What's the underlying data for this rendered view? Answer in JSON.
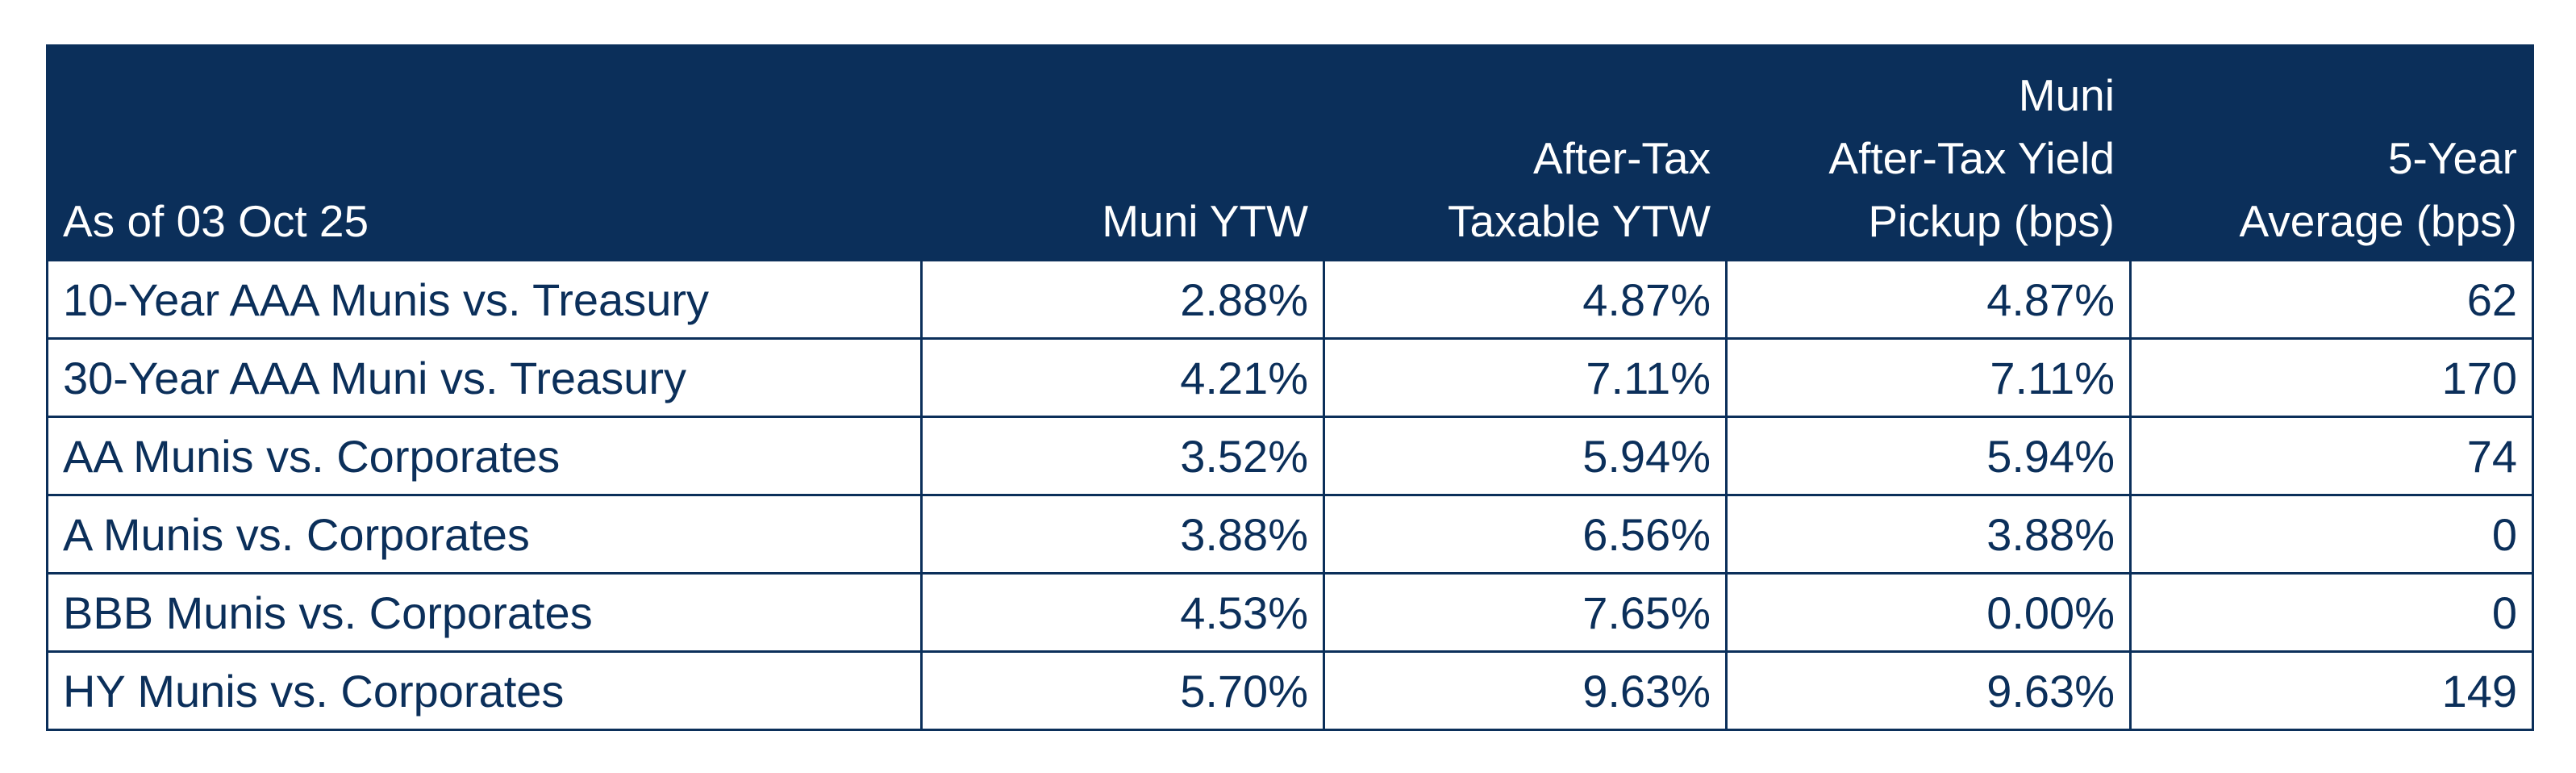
{
  "table": {
    "header": [
      "As of 03 Oct 25",
      "Muni YTW",
      "After-Tax\nTaxable YTW",
      "Muni\nAfter-Tax Yield\nPickup (bps)",
      "5-Year\nAverage (bps)"
    ],
    "rows": [
      [
        "10-Year AAA Munis vs. Treasury",
        "2.88%",
        "4.87%",
        "4.87%",
        "62"
      ],
      [
        "30-Year AAA Muni vs. Treasury",
        "4.21%",
        "7.11%",
        "7.11%",
        "170"
      ],
      [
        "AA Munis vs. Corporates",
        "3.52%",
        "5.94%",
        "5.94%",
        "74"
      ],
      [
        "A Munis vs. Corporates",
        "3.88%",
        "6.56%",
        "3.88%",
        "0"
      ],
      [
        "BBB Munis vs. Corporates",
        "4.53%",
        "7.65%",
        "0.00%",
        "0"
      ],
      [
        "HY Munis vs. Corporates",
        "5.70%",
        "9.63%",
        "9.63%",
        "149"
      ]
    ]
  }
}
